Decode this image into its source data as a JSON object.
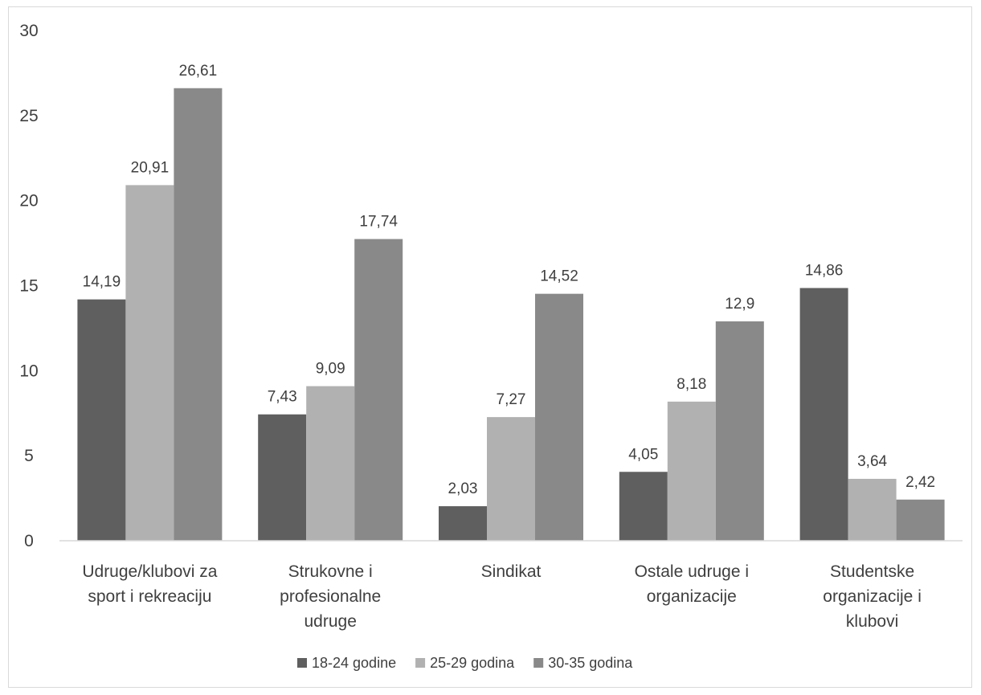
{
  "chart_data": {
    "type": "bar",
    "categories": [
      [
        "Udruge/klubovi za",
        "sport i rekreaciju"
      ],
      [
        "Strukovne i",
        "profesionalne",
        "udruge"
      ],
      [
        "Sindikat"
      ],
      [
        "Ostale udruge i",
        "organizacije"
      ],
      [
        "Studentske",
        "organizacije i",
        "klubovi"
      ]
    ],
    "series": [
      {
        "name": "18-24 godine",
        "color": "#5f5f5f",
        "values": [
          14.19,
          7.43,
          2.03,
          4.05,
          14.86
        ],
        "labels": [
          "14,19",
          "7,43",
          "2,03",
          "4,05",
          "14,86"
        ]
      },
      {
        "name": "25-29 godina",
        "color": "#b1b1b1",
        "values": [
          20.91,
          9.09,
          7.27,
          8.18,
          3.64
        ],
        "labels": [
          "20,91",
          "9,09",
          "7,27",
          "8,18",
          "3,64"
        ]
      },
      {
        "name": "30-35 godina",
        "color": "#898989",
        "values": [
          26.61,
          17.74,
          14.52,
          12.9,
          2.42
        ],
        "labels": [
          "26,61",
          "17,74",
          "14,52",
          "12,9",
          "2,42"
        ]
      }
    ],
    "yticks": [
      "0",
      "5",
      "10",
      "15",
      "20",
      "25",
      "30"
    ],
    "ylim": [
      0,
      30
    ],
    "grid": false,
    "legend_position": "bottom",
    "title": "",
    "xlabel": "",
    "ylabel": ""
  }
}
